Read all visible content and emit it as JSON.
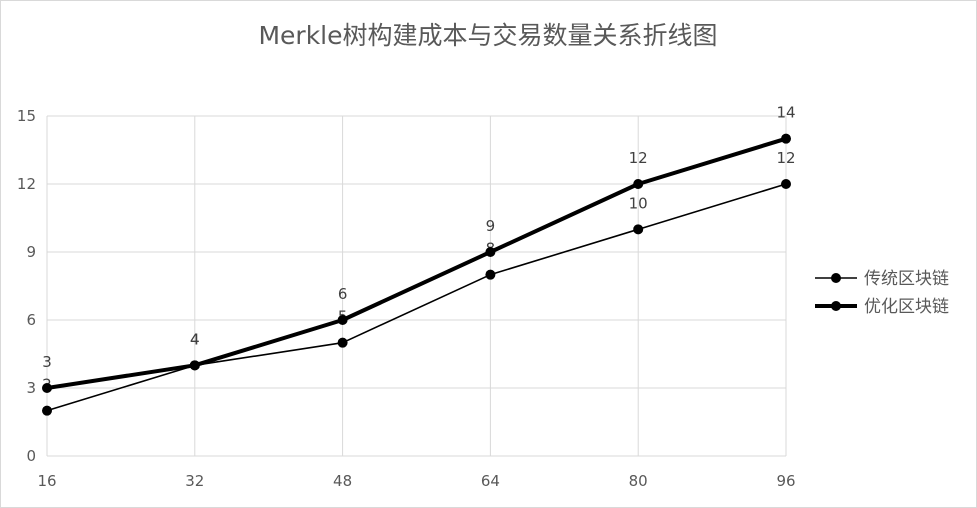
{
  "chart_data": {
    "type": "line",
    "title": "Merkle树构建成本与交易数量关系折线图",
    "categories": [
      "16",
      "32",
      "48",
      "64",
      "80",
      "96"
    ],
    "series": [
      {
        "name": "传统区块链",
        "values": [
          2,
          4,
          5,
          8,
          10,
          12
        ]
      },
      {
        "name": "优化区块链",
        "values": [
          3,
          4,
          6,
          9,
          12,
          14
        ]
      }
    ],
    "ylim": [
      0,
      15
    ],
    "yticks": [
      0,
      3,
      6,
      9,
      12,
      15
    ],
    "grid": true,
    "legend": "right",
    "data_labels": true
  },
  "colors": {
    "series": [
      "#000000",
      "#000000"
    ],
    "grid": "#d9d9d9",
    "text": "#595959"
  }
}
